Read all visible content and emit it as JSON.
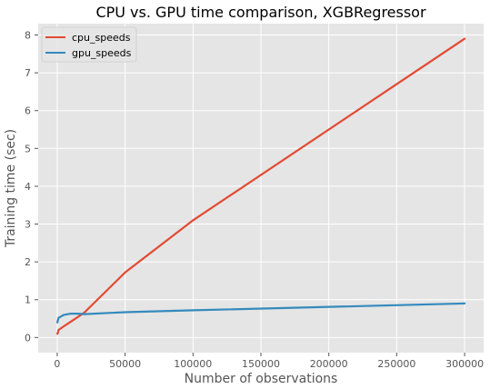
{
  "chart_data": {
    "type": "line",
    "title": "CPU vs. GPU time comparison, XGBRegressor",
    "xlabel": "Number of observations",
    "ylabel": "Training time (sec)",
    "xlim": [
      -14000,
      314000
    ],
    "ylim": [
      -0.4,
      8.3
    ],
    "xticks": [
      0,
      50000,
      100000,
      150000,
      200000,
      250000,
      300000
    ],
    "yticks": [
      0,
      1,
      2,
      3,
      4,
      5,
      6,
      7,
      8
    ],
    "grid": true,
    "legend_position": "top-left",
    "series": [
      {
        "name": "cpu_speeds",
        "color": "#E24A33",
        "x": [
          100,
          500,
          1000,
          5000,
          10000,
          20000,
          50000,
          100000,
          300000
        ],
        "y": [
          0.1,
          0.12,
          0.2,
          0.3,
          0.42,
          0.66,
          1.72,
          3.1,
          7.9
        ]
      },
      {
        "name": "gpu_speeds",
        "color": "#348ABD",
        "x": [
          100,
          500,
          1000,
          5000,
          10000,
          15000,
          20000,
          50000,
          100000,
          300000
        ],
        "y": [
          0.4,
          0.45,
          0.52,
          0.6,
          0.63,
          0.63,
          0.62,
          0.67,
          0.72,
          0.9
        ]
      }
    ]
  }
}
